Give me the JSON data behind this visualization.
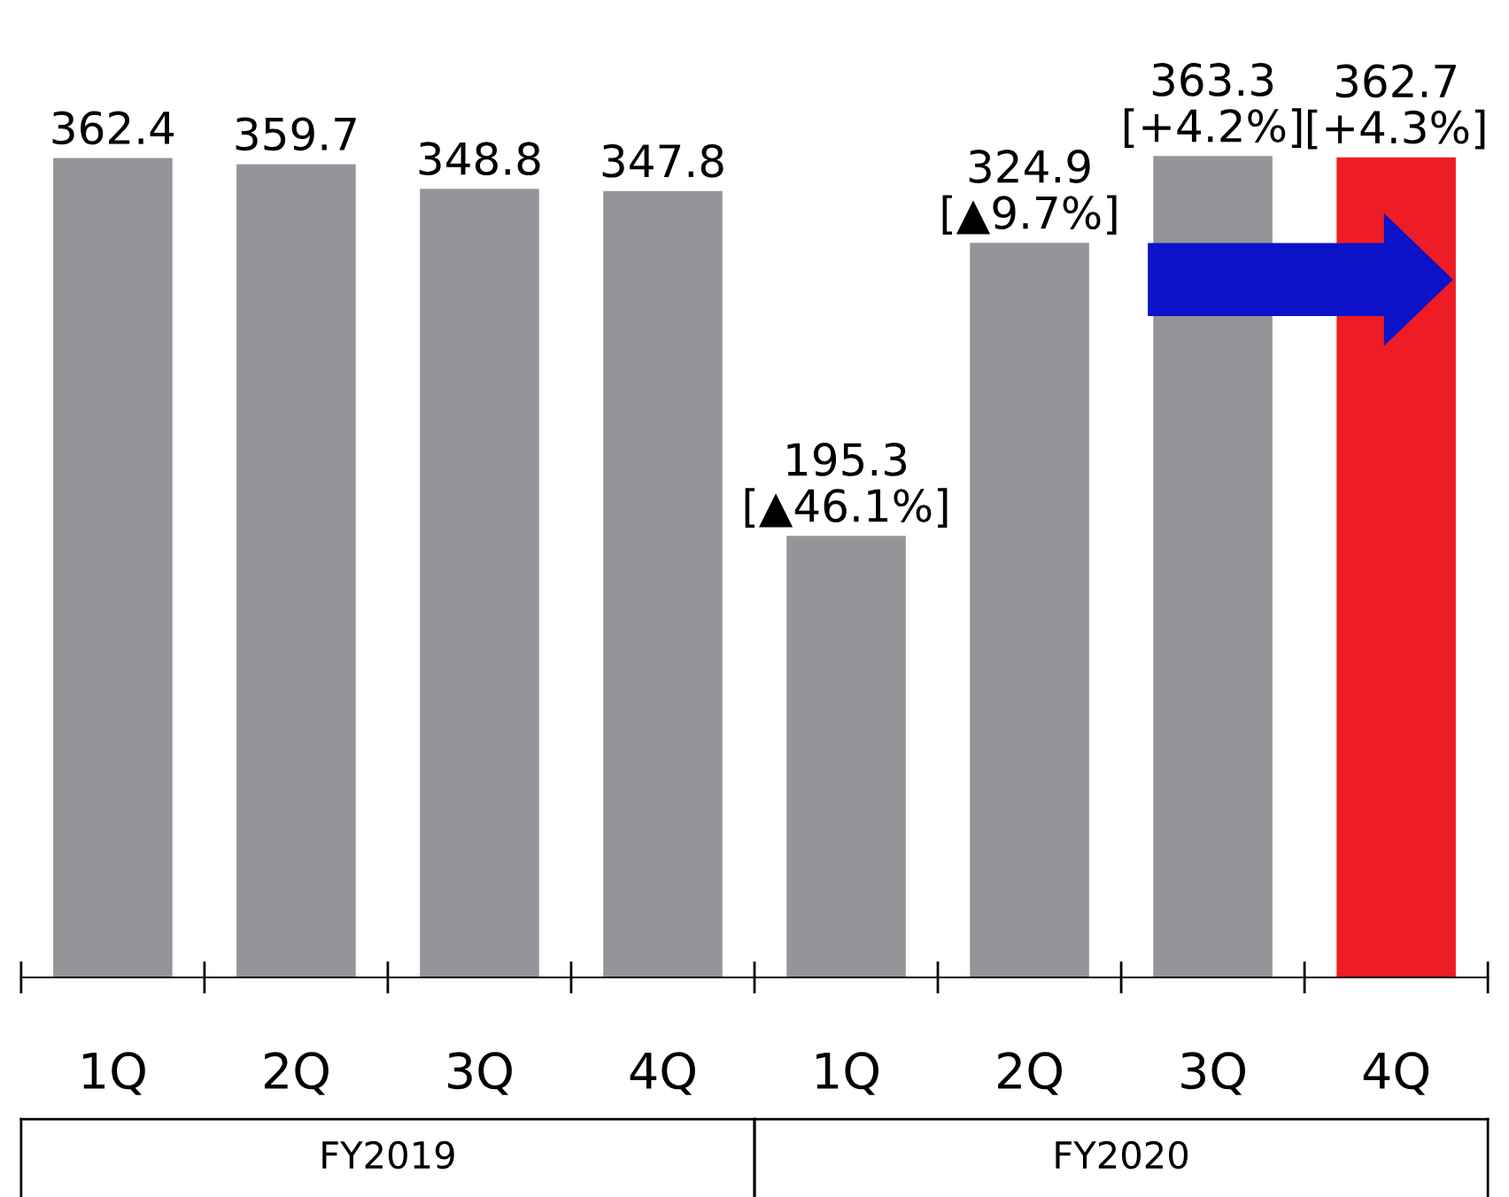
{
  "chart_data": {
    "type": "bar",
    "categories": [
      "1Q",
      "2Q",
      "3Q",
      "4Q",
      "1Q",
      "2Q",
      "3Q",
      "4Q"
    ],
    "values": [
      362.4,
      359.7,
      348.8,
      347.8,
      195.3,
      324.9,
      363.3,
      362.7
    ],
    "colors": [
      "#939598",
      "#939598",
      "#939598",
      "#939598",
      "#939598",
      "#939598",
      "#939598",
      "#ee1c25"
    ],
    "value_labels": [
      "362.4",
      "359.7",
      "348.8",
      "347.8",
      "195.3\n[▲46.1%]",
      "324.9\n[▲9.7%]",
      "363.3\n[+4.2%]",
      "362.7\n[+4.3%]"
    ],
    "annotations": [
      "FY2019",
      "FY2020"
    ],
    "grid": false,
    "legend": false
  }
}
